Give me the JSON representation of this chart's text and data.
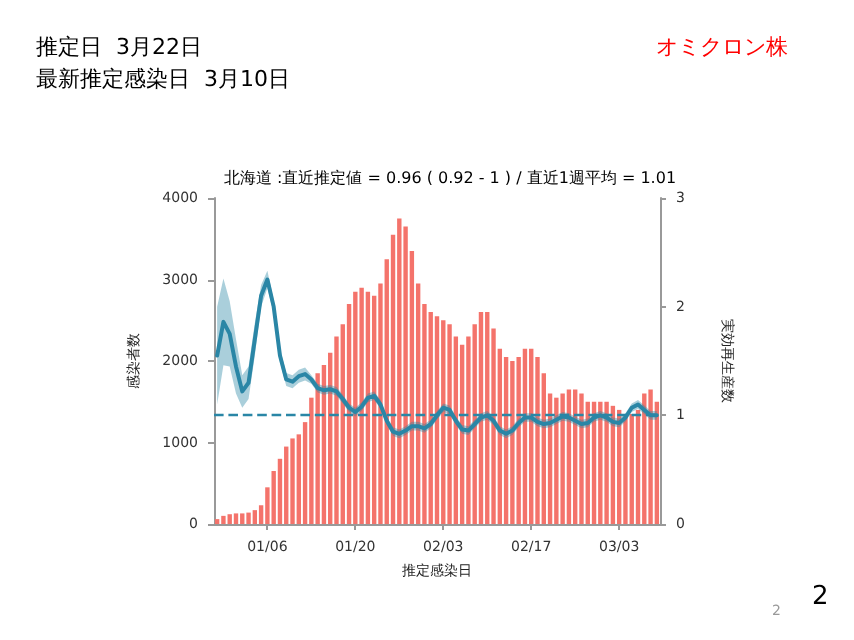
{
  "chart_data": {
    "type": "bar",
    "title": "北海道 :直近推定値 = 0.96 ( 0.92 - 1 ) / 直近1週平均 = 1.01",
    "xlabel": "推定感染日",
    "ylabel": "感染者数",
    "y2label": "実効再生産数",
    "annotations": [
      "推定日  3月22日",
      "最新推定感染日  3月10日",
      "オミクロン株",
      "2",
      "2"
    ],
    "categories": [
      null,
      null,
      null,
      null,
      null,
      null,
      null,
      null,
      "01/06",
      null,
      null,
      null,
      null,
      null,
      null,
      null,
      null,
      null,
      null,
      null,
      null,
      null,
      "01/20",
      null,
      null,
      null,
      null,
      null,
      null,
      null,
      null,
      null,
      null,
      null,
      null,
      null,
      "02/03",
      null,
      null,
      null,
      null,
      null,
      null,
      null,
      null,
      null,
      null,
      null,
      null,
      null,
      "02/17",
      null,
      null,
      null,
      null,
      null,
      null,
      null,
      null,
      null,
      null,
      null,
      null,
      null,
      "03/03",
      null,
      null,
      null,
      null,
      null,
      null
    ],
    "series": [
      {
        "color": "#f4736b",
        "values": [
          60,
          100,
          120,
          130,
          130,
          140,
          170,
          230,
          450,
          650,
          800,
          950,
          1050,
          1100,
          1250,
          1550,
          1850,
          1950,
          2100,
          2300,
          2450,
          2700,
          2850,
          2900,
          2850,
          2800,
          2950,
          3250,
          3550,
          3750,
          3650,
          3350,
          2950,
          2700,
          2600,
          2550,
          2500,
          2450,
          2300,
          2200,
          2300,
          2450,
          2600,
          2600,
          2400,
          2150,
          2050,
          2000,
          2050,
          2150,
          2150,
          2050,
          1850,
          1600,
          1550,
          1600,
          1650,
          1650,
          1600,
          1500,
          1500,
          1500,
          1500,
          1450,
          1400,
          1350,
          1350,
          1400,
          1600,
          1650,
          1500
        ]
      },
      {
        "type": "line",
        "axis": "y2",
        "color": "#2a86a6",
        "values": [
          1.55,
          1.86,
          1.75,
          1.45,
          1.22,
          1.3,
          1.7,
          2.1,
          2.25,
          2.0,
          1.55,
          1.33,
          1.31,
          1.36,
          1.38,
          1.33,
          1.25,
          1.23,
          1.24,
          1.22,
          1.15,
          1.07,
          1.03,
          1.08,
          1.16,
          1.18,
          1.1,
          0.95,
          0.85,
          0.83,
          0.86,
          0.9,
          0.9,
          0.88,
          0.92,
          1.0,
          1.07,
          1.05,
          0.95,
          0.87,
          0.86,
          0.92,
          0.98,
          1.0,
          0.95,
          0.86,
          0.83,
          0.86,
          0.93,
          0.98,
          0.98,
          0.94,
          0.92,
          0.93,
          0.96,
          0.99,
          0.98,
          0.95,
          0.92,
          0.93,
          0.98,
          1.0,
          0.98,
          0.94,
          0.93,
          0.98,
          1.07,
          1.1,
          1.05,
          1.0,
          1.0
        ],
        "lower": [
          1.1,
          1.46,
          1.45,
          1.2,
          1.07,
          1.15,
          1.55,
          2.0,
          2.17,
          1.94,
          1.49,
          1.27,
          1.25,
          1.3,
          1.32,
          1.29,
          1.21,
          1.19,
          1.2,
          1.18,
          1.11,
          1.03,
          0.99,
          1.04,
          1.12,
          1.14,
          1.06,
          0.91,
          0.81,
          0.79,
          0.82,
          0.86,
          0.86,
          0.84,
          0.88,
          0.96,
          1.03,
          1.01,
          0.91,
          0.83,
          0.82,
          0.88,
          0.94,
          0.96,
          0.91,
          0.82,
          0.79,
          0.82,
          0.89,
          0.94,
          0.94,
          0.9,
          0.88,
          0.89,
          0.92,
          0.95,
          0.94,
          0.91,
          0.88,
          0.89,
          0.94,
          0.96,
          0.94,
          0.9,
          0.89,
          0.94,
          1.03,
          1.06,
          1.01,
          0.96,
          0.96
        ],
        "upper": [
          2.0,
          2.26,
          2.05,
          1.7,
          1.37,
          1.45,
          1.85,
          2.2,
          2.33,
          2.06,
          1.61,
          1.39,
          1.37,
          1.42,
          1.44,
          1.37,
          1.29,
          1.27,
          1.28,
          1.26,
          1.19,
          1.11,
          1.07,
          1.12,
          1.2,
          1.22,
          1.14,
          0.99,
          0.89,
          0.87,
          0.9,
          0.94,
          0.94,
          0.92,
          0.96,
          1.04,
          1.11,
          1.09,
          0.99,
          0.91,
          0.9,
          0.96,
          1.02,
          1.04,
          0.99,
          0.9,
          0.87,
          0.9,
          0.97,
          1.02,
          1.02,
          0.98,
          0.96,
          0.97,
          1.0,
          1.03,
          1.02,
          0.99,
          0.96,
          0.97,
          1.02,
          1.04,
          1.02,
          0.98,
          0.97,
          1.02,
          1.11,
          1.14,
          1.09,
          1.04,
          1.04
        ]
      }
    ],
    "ylim": [
      0,
      4000
    ],
    "yticks": [
      0,
      1000,
      2000,
      3000,
      4000
    ],
    "y2lim": [
      0,
      3
    ],
    "y2ticks": [
      0,
      1,
      2,
      3
    ],
    "ref_lines": [
      {
        "axis": "y2",
        "value": 1,
        "color": "#2a86a6",
        "line_style": "dashed"
      }
    ],
    "grid": false,
    "marker": "none",
    "line_style": "solid"
  }
}
